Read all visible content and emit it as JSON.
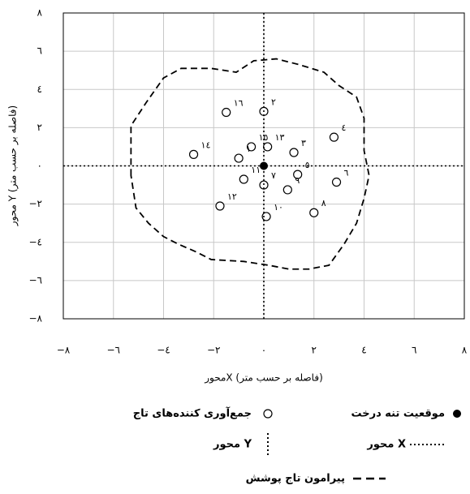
{
  "chart_data": {
    "type": "scatter",
    "x_label": "محورX (فاصله بر حسب متر)",
    "y_label": "محور Y (فاصله بر حسب متر)",
    "xlim": [
      -8,
      8
    ],
    "ylim": [
      -8,
      8
    ],
    "xticks": [
      {
        "value": -8,
        "label": "−٨"
      },
      {
        "value": -6,
        "label": "−٦"
      },
      {
        "value": -4,
        "label": "−٤"
      },
      {
        "value": -2,
        "label": "−٢"
      },
      {
        "value": 0,
        "label": "٠"
      },
      {
        "value": 2,
        "label": "٢"
      },
      {
        "value": 4,
        "label": "٤"
      },
      {
        "value": 6,
        "label": "٦"
      },
      {
        "value": 8,
        "label": "٨"
      }
    ],
    "yticks": [
      {
        "value": -8,
        "label": "−٨"
      },
      {
        "value": -6,
        "label": "−٦"
      },
      {
        "value": -4,
        "label": "−٤"
      },
      {
        "value": -2,
        "label": "−٢"
      },
      {
        "value": 0,
        "label": "٠"
      },
      {
        "value": 2,
        "label": "٢"
      },
      {
        "value": 4,
        "label": "٤"
      },
      {
        "value": 6,
        "label": "٦"
      },
      {
        "value": 8,
        "label": "٨"
      }
    ],
    "grid": true,
    "series": [
      {
        "name": "موقعیت تنه درخت",
        "kind": "filled-point",
        "color": "#000000",
        "x": [
          0
        ],
        "values": [
          0
        ]
      },
      {
        "name": "جمع‌آوری کننده‌های تاج",
        "kind": "open-point",
        "color": "#000000",
        "point_labels": [
          "١٦",
          "٢",
          "١٤",
          "١٥",
          "١٣",
          "١",
          "٣",
          "٤",
          "١١",
          "٧",
          "٥",
          "٩",
          "٦",
          "١٢",
          "١٠",
          "٨"
        ],
        "x": [
          -1.5,
          0,
          -2.8,
          -0.5,
          0.15,
          -1.0,
          1.2,
          2.8,
          -0.8,
          0,
          1.35,
          0.95,
          2.9,
          -1.75,
          0.1,
          2.0
        ],
        "values": [
          2.8,
          2.85,
          0.6,
          1.0,
          1.0,
          0.4,
          0.7,
          1.5,
          -0.7,
          -1.0,
          -0.45,
          -1.25,
          -0.85,
          -2.1,
          -2.65,
          -2.45
        ]
      },
      {
        "name": "محور X",
        "kind": "h-line",
        "color": "#000000",
        "values": [
          0
        ]
      },
      {
        "name": "محور Y",
        "kind": "v-line",
        "color": "#000000",
        "x": [
          0
        ]
      },
      {
        "name": "پیرامون تاج پوشش",
        "kind": "closed-curve",
        "color": "#000000",
        "x": [
          -5.3,
          -5.3,
          -4.7,
          -4.0,
          -3.3,
          -2.1,
          -1.1,
          -0.4,
          0.5,
          1.4,
          2.4,
          3.0,
          3.7,
          4.0,
          4.0,
          4.2,
          4.0,
          3.7,
          3.2,
          2.6,
          1.8,
          1.0,
          0.2,
          -0.8,
          -2.1,
          -2.7,
          -3.4,
          -4.0,
          -4.6,
          -5.1
        ],
        "values": [
          -0.5,
          2.1,
          3.3,
          4.6,
          5.1,
          5.1,
          4.9,
          5.5,
          5.6,
          5.3,
          4.9,
          4.2,
          3.6,
          2.5,
          0.8,
          -0.5,
          -1.7,
          -3.0,
          -4.1,
          -5.2,
          -5.4,
          -5.4,
          -5.2,
          -5.0,
          -4.9,
          -4.5,
          -4.1,
          -3.7,
          -3.0,
          -2.2
        ]
      }
    ]
  }
}
